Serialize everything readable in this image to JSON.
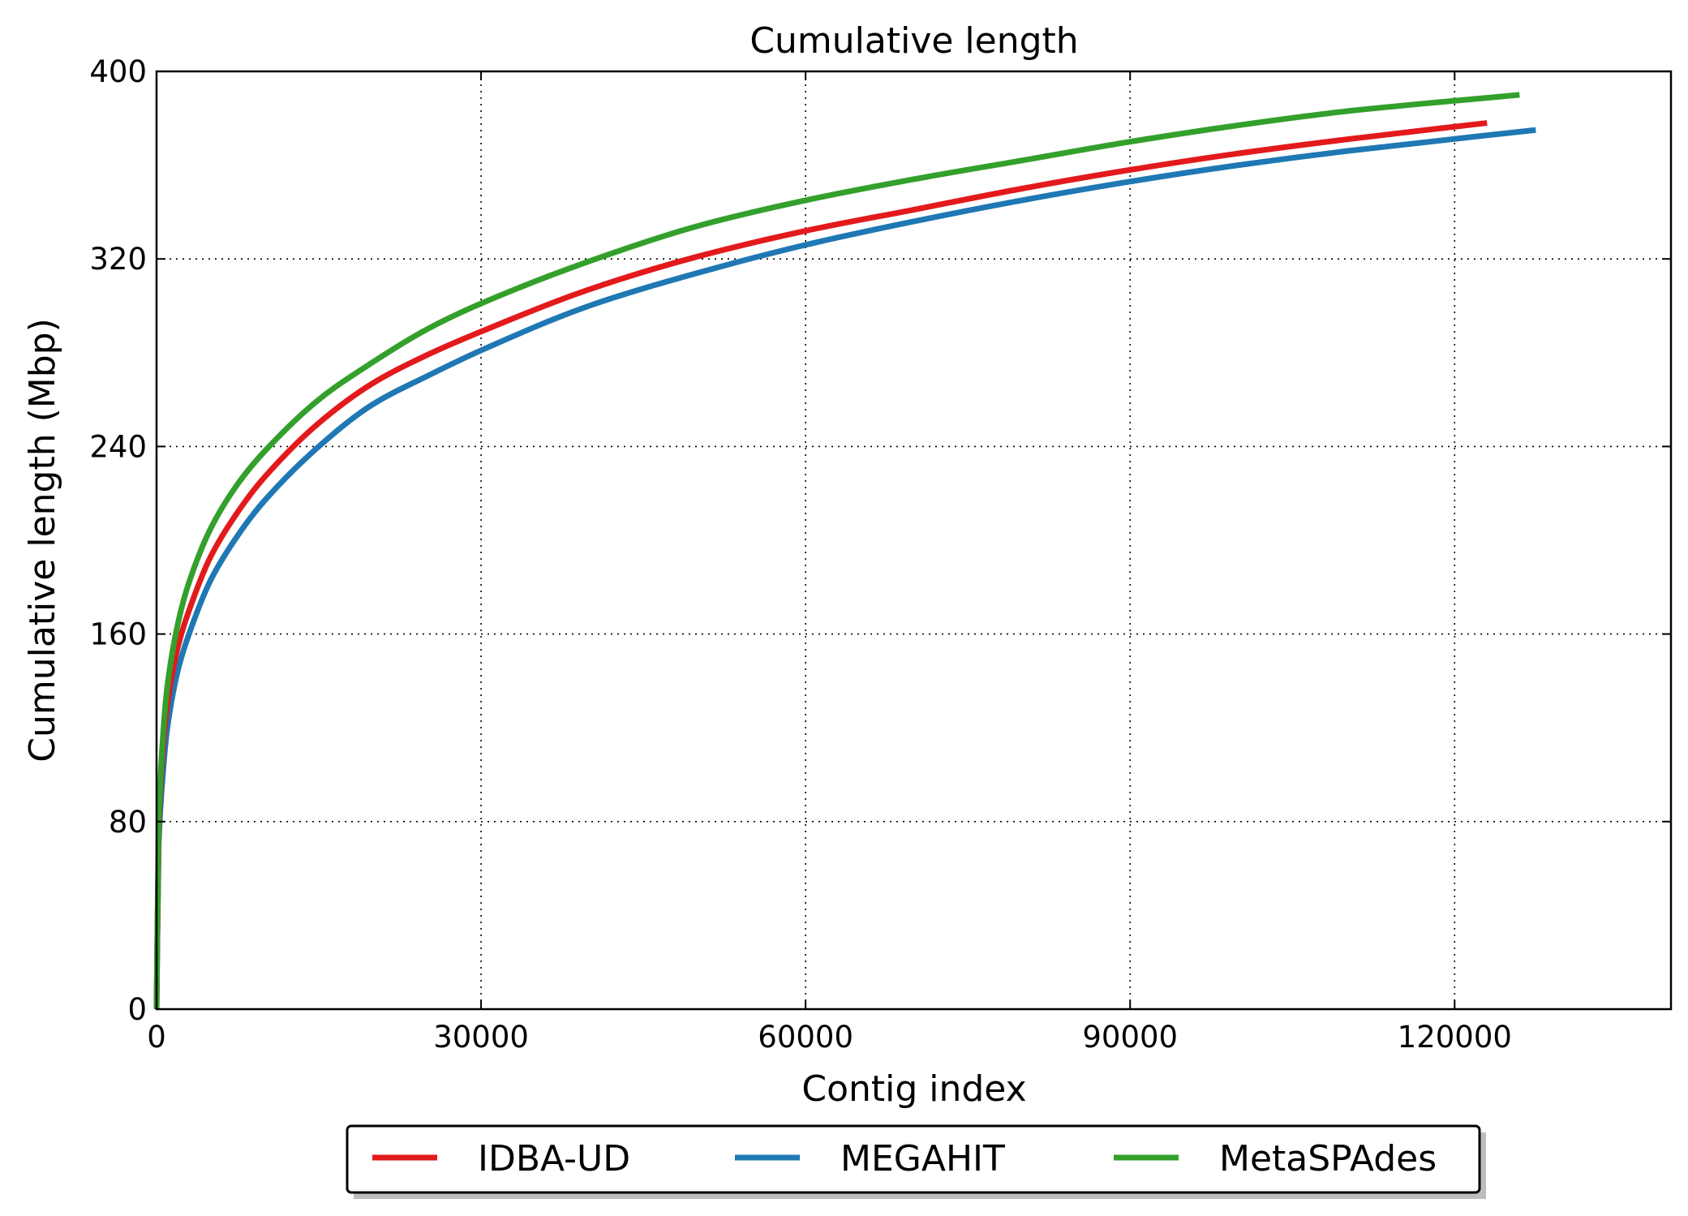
{
  "chart_data": {
    "type": "line",
    "title": "Cumulative length",
    "xlabel": "Contig index",
    "ylabel": "Cumulative length (Mbp)",
    "xlim": [
      0,
      140000
    ],
    "ylim": [
      0,
      400
    ],
    "xticks": [
      0,
      30000,
      60000,
      90000,
      120000
    ],
    "yticks": [
      0,
      80,
      160,
      240,
      320,
      400
    ],
    "grid": true,
    "legend": {
      "placement": "bottom-center-outside",
      "columns": 3
    },
    "series": [
      {
        "name": "IDBA-UD",
        "color": "#e31a1c",
        "x": [
          0,
          200,
          500,
          1000,
          2000,
          3000,
          5000,
          7500,
          10000,
          15000,
          20000,
          25000,
          30000,
          40000,
          50000,
          60000,
          70000,
          80000,
          90000,
          100000,
          110000,
          123000
        ],
        "y": [
          0,
          75,
          105,
          130,
          155,
          170,
          193,
          212,
          227,
          250,
          267,
          279,
          289,
          307,
          321,
          332,
          341,
          350,
          358,
          365,
          371,
          378
        ]
      },
      {
        "name": "MEGAHIT",
        "color": "#1f78b4",
        "x": [
          0,
          200,
          500,
          1000,
          2000,
          3000,
          5000,
          7500,
          10000,
          15000,
          20000,
          25000,
          30000,
          40000,
          50000,
          60000,
          70000,
          80000,
          90000,
          100000,
          110000,
          127500
        ],
        "y": [
          0,
          70,
          95,
          120,
          145,
          160,
          183,
          202,
          217,
          240,
          258,
          270,
          281,
          300,
          314,
          326,
          336,
          345,
          353,
          360,
          366,
          375
        ]
      },
      {
        "name": "MetaSPAdes",
        "color": "#33a02c",
        "x": [
          0,
          200,
          500,
          1000,
          2000,
          3000,
          5000,
          7500,
          10000,
          15000,
          20000,
          25000,
          30000,
          40000,
          50000,
          60000,
          70000,
          80000,
          90000,
          100000,
          110000,
          126000
        ],
        "y": [
          0,
          80,
          110,
          138,
          165,
          182,
          205,
          224,
          238,
          260,
          276,
          290,
          301,
          319,
          334,
          345,
          354,
          362,
          370,
          377,
          383,
          390
        ]
      }
    ]
  }
}
